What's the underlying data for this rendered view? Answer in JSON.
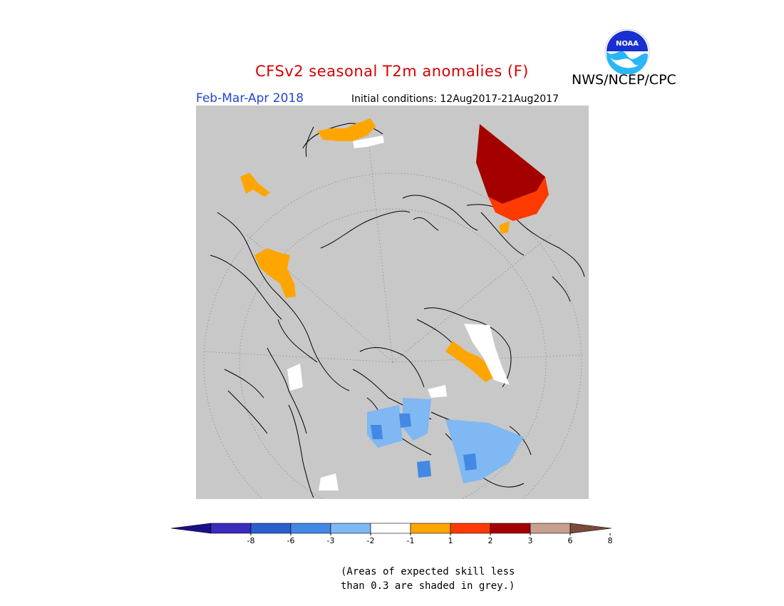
{
  "header": {
    "title": "CFSv2 seasonal T2m anomalies (F)",
    "season": "Feb-Mar-Apr 2018",
    "initial_conditions": "Initial conditions: 12Aug2017-21Aug2017",
    "organization": "NWS/NCEP/CPC",
    "logo_text": "NOAA"
  },
  "legend": {
    "tick_labels": [
      "-8",
      "-6",
      "-3",
      "-2",
      "-1",
      "1",
      "2",
      "3",
      "6",
      "8"
    ],
    "colors": [
      "#3a2bbd",
      "#2a5fd0",
      "#4488e6",
      "#7fb8f2",
      "#ffffff",
      "#ffa500",
      "#ff3a00",
      "#a50000",
      "#c8a090"
    ],
    "below_color": "#1a0f8a",
    "above_color": "#7a4a3a"
  },
  "colors": {
    "no_skill_grey": "#c8c8c8",
    "title_red": "#d40000",
    "season_blue": "#1f47d6"
  },
  "footnote": {
    "line1": "(Areas of expected skill less",
    "line2": "than 0.3 are shaded in grey.)"
  }
}
